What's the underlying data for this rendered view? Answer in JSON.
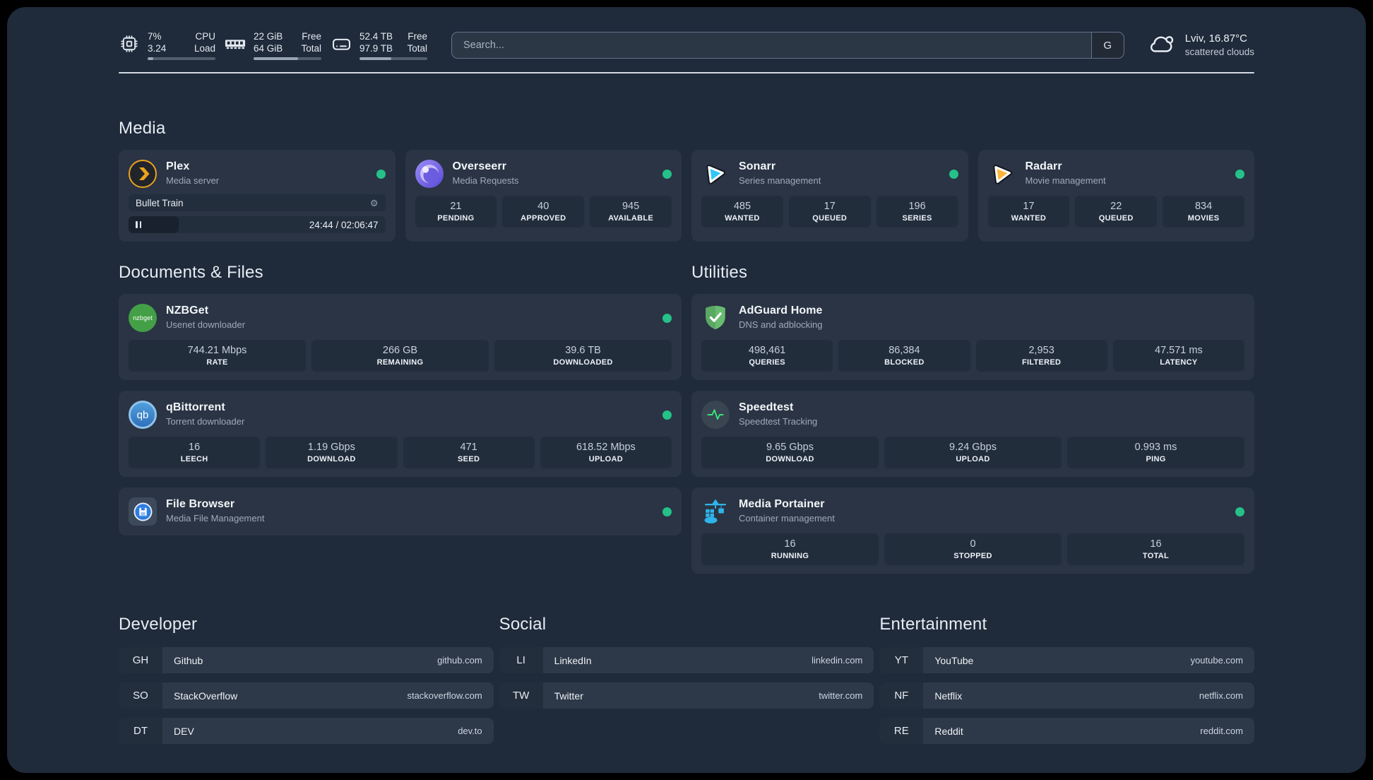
{
  "topbar": {
    "cpu": {
      "value_top": "7%",
      "value_bottom": "3.24",
      "label_top": "CPU",
      "label_bottom": "Load",
      "progress_pct": 8
    },
    "memory": {
      "value_top": "22 GiB",
      "value_bottom": "64 GiB",
      "label_top": "Free",
      "label_bottom": "Total",
      "progress_pct": 66
    },
    "disk": {
      "value_top": "52.4 TB",
      "value_bottom": "97.9 TB",
      "label_top": "Free",
      "label_bottom": "Total",
      "progress_pct": 47
    },
    "search": {
      "placeholder": "Search...",
      "engine_button": "G"
    },
    "weather": {
      "location": "Lviv, 16.87°C",
      "condition": "scattered clouds"
    }
  },
  "colors": {
    "status_online": "#25c188",
    "plex_accent": "#e8a21f",
    "panel_bg": "#1f2a3a",
    "card_bg": "#2a3444"
  },
  "media": {
    "title": "Media",
    "plex": {
      "title": "Plex",
      "subtitle": "Media server",
      "now_playing": "Bullet Train",
      "time": "24:44 / 02:06:47",
      "progress_pct": 19.5
    },
    "overseerr": {
      "title": "Overseerr",
      "subtitle": "Media Requests",
      "stats": [
        {
          "value": "21",
          "label": "PENDING"
        },
        {
          "value": "40",
          "label": "APPROVED"
        },
        {
          "value": "945",
          "label": "AVAILABLE"
        }
      ]
    },
    "sonarr": {
      "title": "Sonarr",
      "subtitle": "Series management",
      "stats": [
        {
          "value": "485",
          "label": "WANTED"
        },
        {
          "value": "17",
          "label": "QUEUED"
        },
        {
          "value": "196",
          "label": "SERIES"
        }
      ]
    },
    "radarr": {
      "title": "Radarr",
      "subtitle": "Movie management",
      "stats": [
        {
          "value": "17",
          "label": "WANTED"
        },
        {
          "value": "22",
          "label": "QUEUED"
        },
        {
          "value": "834",
          "label": "MOVIES"
        }
      ]
    }
  },
  "documents": {
    "title": "Documents & Files",
    "nzbget": {
      "title": "NZBGet",
      "subtitle": "Usenet downloader",
      "icon_text": "nzbget",
      "stats": [
        {
          "value": "744.21 Mbps",
          "label": "RATE"
        },
        {
          "value": "266 GB",
          "label": "REMAINING"
        },
        {
          "value": "39.6 TB",
          "label": "DOWNLOADED"
        }
      ]
    },
    "qbittorrent": {
      "title": "qBittorrent",
      "subtitle": "Torrent downloader",
      "icon_text": "qb",
      "stats": [
        {
          "value": "16",
          "label": "LEECH"
        },
        {
          "value": "1.19 Gbps",
          "label": "DOWNLOAD"
        },
        {
          "value": "471",
          "label": "SEED"
        },
        {
          "value": "618.52 Mbps",
          "label": "UPLOAD"
        }
      ]
    },
    "filebrowser": {
      "title": "File Browser",
      "subtitle": "Media File Management"
    }
  },
  "utilities": {
    "title": "Utilities",
    "adguard": {
      "title": "AdGuard Home",
      "subtitle": "DNS and adblocking",
      "stats": [
        {
          "value": "498,461",
          "label": "QUERIES"
        },
        {
          "value": "86,384",
          "label": "BLOCKED"
        },
        {
          "value": "2,953",
          "label": "FILTERED"
        },
        {
          "value": "47.571 ms",
          "label": "LATENCY"
        }
      ]
    },
    "speedtest": {
      "title": "Speedtest",
      "subtitle": "Speedtest Tracking",
      "stats": [
        {
          "value": "9.65 Gbps",
          "label": "DOWNLOAD"
        },
        {
          "value": "9.24 Gbps",
          "label": "UPLOAD"
        },
        {
          "value": "0.993 ms",
          "label": "PING"
        }
      ]
    },
    "portainer": {
      "title": "Media Portainer",
      "subtitle": "Container management",
      "stats": [
        {
          "value": "16",
          "label": "RUNNING"
        },
        {
          "value": "0",
          "label": "STOPPED"
        },
        {
          "value": "16",
          "label": "TOTAL"
        }
      ]
    }
  },
  "bookmarks": {
    "developer": {
      "title": "Developer",
      "items": [
        {
          "abbr": "GH",
          "name": "Github",
          "url": "github.com"
        },
        {
          "abbr": "SO",
          "name": "StackOverflow",
          "url": "stackoverflow.com"
        },
        {
          "abbr": "DT",
          "name": "DEV",
          "url": "dev.to"
        }
      ]
    },
    "social": {
      "title": "Social",
      "items": [
        {
          "abbr": "LI",
          "name": "LinkedIn",
          "url": "linkedin.com"
        },
        {
          "abbr": "TW",
          "name": "Twitter",
          "url": "twitter.com"
        }
      ]
    },
    "entertainment": {
      "title": "Entertainment",
      "items": [
        {
          "abbr": "YT",
          "name": "YouTube",
          "url": "youtube.com"
        },
        {
          "abbr": "NF",
          "name": "Netflix",
          "url": "netflix.com"
        },
        {
          "abbr": "RE",
          "name": "Reddit",
          "url": "reddit.com"
        }
      ]
    }
  }
}
